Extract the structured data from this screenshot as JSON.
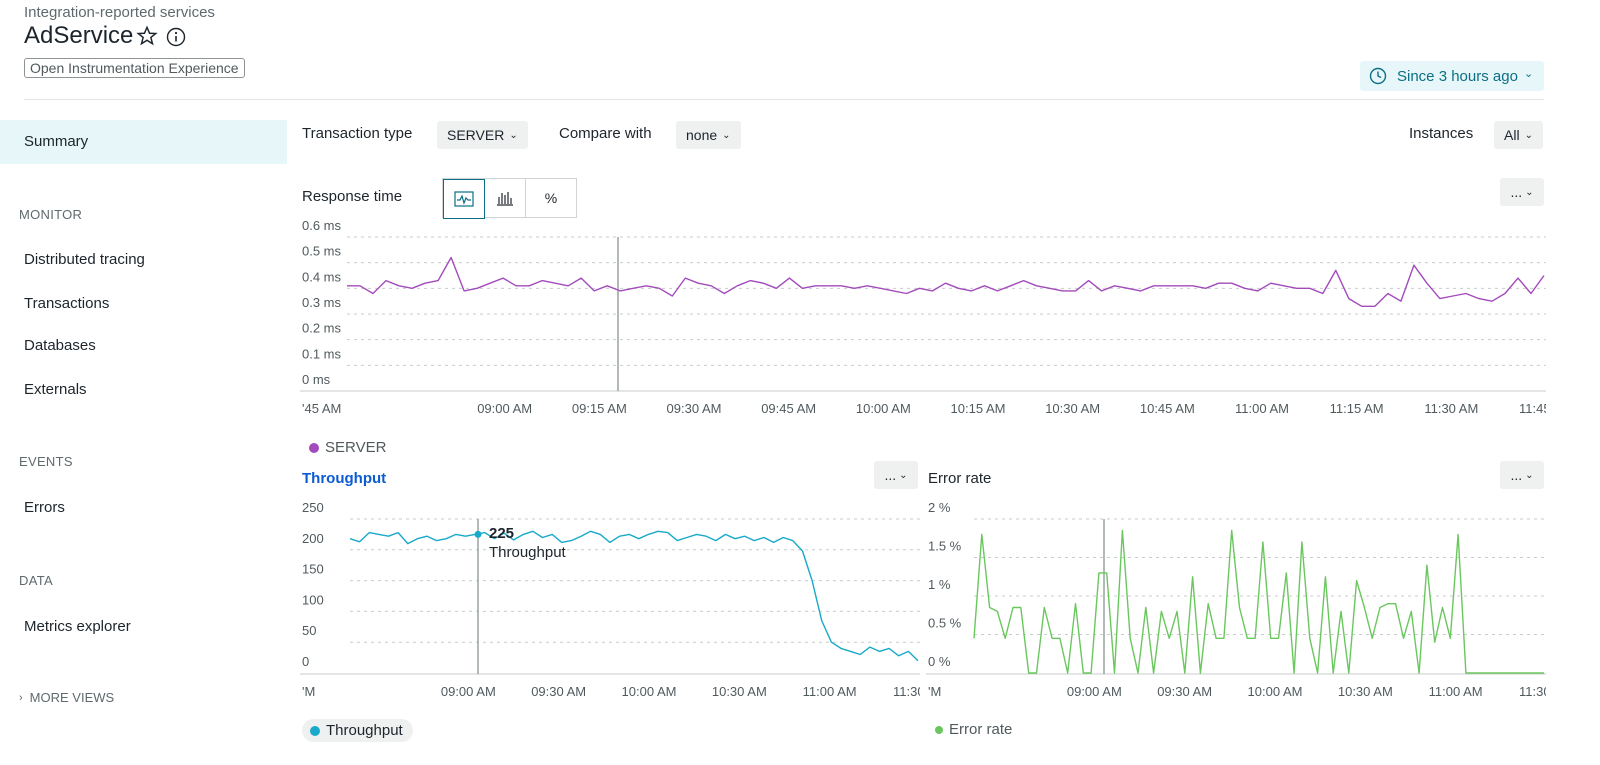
{
  "header": {
    "subtitle": "Integration-reported services",
    "title": "AdService",
    "tag": "Open Instrumentation Experience",
    "time_picker": "Since 3 hours ago"
  },
  "sidebar": {
    "summary": "Summary",
    "sections": [
      {
        "title": "MONITOR",
        "items": [
          "Distributed tracing",
          "Transactions",
          "Databases",
          "Externals"
        ]
      },
      {
        "title": "EVENTS",
        "items": [
          "Errors"
        ]
      },
      {
        "title": "DATA",
        "items": [
          "Metrics explorer"
        ]
      }
    ],
    "more_views": "MORE VIEWS"
  },
  "filters": {
    "transaction_type_label": "Transaction type",
    "transaction_type_value": "SERVER",
    "compare_label": "Compare with",
    "compare_value": "none",
    "instances_label": "Instances",
    "instances_value": "All"
  },
  "colors": {
    "response": "#a24bbb",
    "throughput": "#19a9c9",
    "error": "#6ac75e",
    "accent": "#0b6f85"
  },
  "response_panel": {
    "title": "Response time",
    "view_buttons": [
      "line-chart-icon",
      "histogram-icon",
      "%"
    ],
    "more": "...",
    "legend": "SERVER"
  },
  "throughput_panel": {
    "title": "Throughput",
    "more": "...",
    "legend": "Throughput",
    "tooltip_value": "225",
    "tooltip_label": "Throughput"
  },
  "error_panel": {
    "title": "Error rate",
    "more": "...",
    "legend": "Error rate"
  },
  "chart_data": [
    {
      "type": "line",
      "title": "Response time",
      "yticks": [
        "0.6 ms",
        "0.5 ms",
        "0.4 ms",
        "0.3 ms",
        "0.2 ms",
        "0.1 ms",
        "0 ms"
      ],
      "xticks": [
        "'45 AM",
        "09:00 AM",
        "09:15 AM",
        "09:30 AM",
        "09:45 AM",
        "10:00 AM",
        "10:15 AM",
        "10:30 AM",
        "10:45 AM",
        "11:00 AM",
        "11:15 AM",
        "11:30 AM",
        "11:45 AM"
      ],
      "ylim": [
        0,
        0.6
      ],
      "series": [
        {
          "name": "SERVER",
          "values": [
            0.41,
            0.41,
            0.38,
            0.43,
            0.41,
            0.4,
            0.42,
            0.43,
            0.52,
            0.39,
            0.4,
            0.42,
            0.44,
            0.41,
            0.41,
            0.43,
            0.42,
            0.41,
            0.44,
            0.39,
            0.41,
            0.39,
            0.4,
            0.41,
            0.4,
            0.37,
            0.44,
            0.42,
            0.41,
            0.38,
            0.41,
            0.43,
            0.42,
            0.4,
            0.44,
            0.4,
            0.41,
            0.41,
            0.41,
            0.4,
            0.41,
            0.4,
            0.39,
            0.38,
            0.4,
            0.39,
            0.42,
            0.4,
            0.39,
            0.41,
            0.39,
            0.41,
            0.43,
            0.41,
            0.4,
            0.39,
            0.39,
            0.43,
            0.39,
            0.41,
            0.4,
            0.39,
            0.41,
            0.41,
            0.41,
            0.41,
            0.4,
            0.42,
            0.42,
            0.4,
            0.39,
            0.42,
            0.41,
            0.4,
            0.4,
            0.38,
            0.47,
            0.36,
            0.33,
            0.33,
            0.38,
            0.35,
            0.49,
            0.42,
            0.36,
            0.37,
            0.38,
            0.36,
            0.35,
            0.38,
            0.44,
            0.38,
            0.45
          ]
        }
      ]
    },
    {
      "type": "line",
      "title": "Throughput",
      "yticks": [
        "250",
        "200",
        "150",
        "100",
        "50",
        "0"
      ],
      "xticks": [
        "'M",
        "09:00 AM",
        "09:30 AM",
        "10:00 AM",
        "10:30 AM",
        "11:00 AM",
        "11:30 AM"
      ],
      "ylim": [
        0,
        250
      ],
      "series": [
        {
          "name": "Throughput",
          "values": [
            218,
            213,
            228,
            225,
            222,
            228,
            210,
            218,
            222,
            215,
            218,
            225,
            222,
            225,
            228,
            218,
            227,
            216,
            225,
            230,
            220,
            225,
            212,
            215,
            222,
            230,
            225,
            212,
            222,
            225,
            218,
            225,
            230,
            228,
            215,
            220,
            225,
            222,
            215,
            225,
            218,
            222,
            215,
            220,
            212,
            220,
            215,
            198,
            150,
            85,
            50,
            40,
            35,
            30,
            42,
            35,
            40,
            28,
            35,
            20
          ]
        }
      ]
    },
    {
      "type": "line",
      "title": "Error rate",
      "yticks": [
        "2 %",
        "1.5 %",
        "1 %",
        "0.5 %",
        "0 %"
      ],
      "xticks": [
        "'M",
        "09:00 AM",
        "09:30 AM",
        "10:00 AM",
        "10:30 AM",
        "11:00 AM",
        "11:30 AM"
      ],
      "ylim": [
        0,
        2
      ],
      "series": [
        {
          "name": "Error rate",
          "values": [
            0.45,
            1.8,
            0.85,
            0.8,
            0.45,
            0.85,
            0.85,
            0,
            0,
            0.85,
            0.45,
            0.45,
            0,
            0.9,
            0,
            0,
            1.3,
            1.3,
            0,
            1.85,
            0.45,
            0,
            0.85,
            0,
            0.8,
            0.45,
            0.8,
            0,
            1.25,
            0,
            0.9,
            0.45,
            0.45,
            1.85,
            0.85,
            0.45,
            0.45,
            1.7,
            0.45,
            0.45,
            1.3,
            0,
            1.7,
            0.45,
            0,
            1.25,
            0,
            0.8,
            0,
            1.2,
            0.85,
            0.45,
            0.85,
            0.9,
            0.9,
            0.45,
            0.8,
            0,
            1.4,
            0.4,
            0.85,
            0.45,
            1.8,
            0,
            0,
            0,
            0,
            0,
            0,
            0,
            0,
            0,
            0,
            0
          ]
        }
      ]
    }
  ]
}
